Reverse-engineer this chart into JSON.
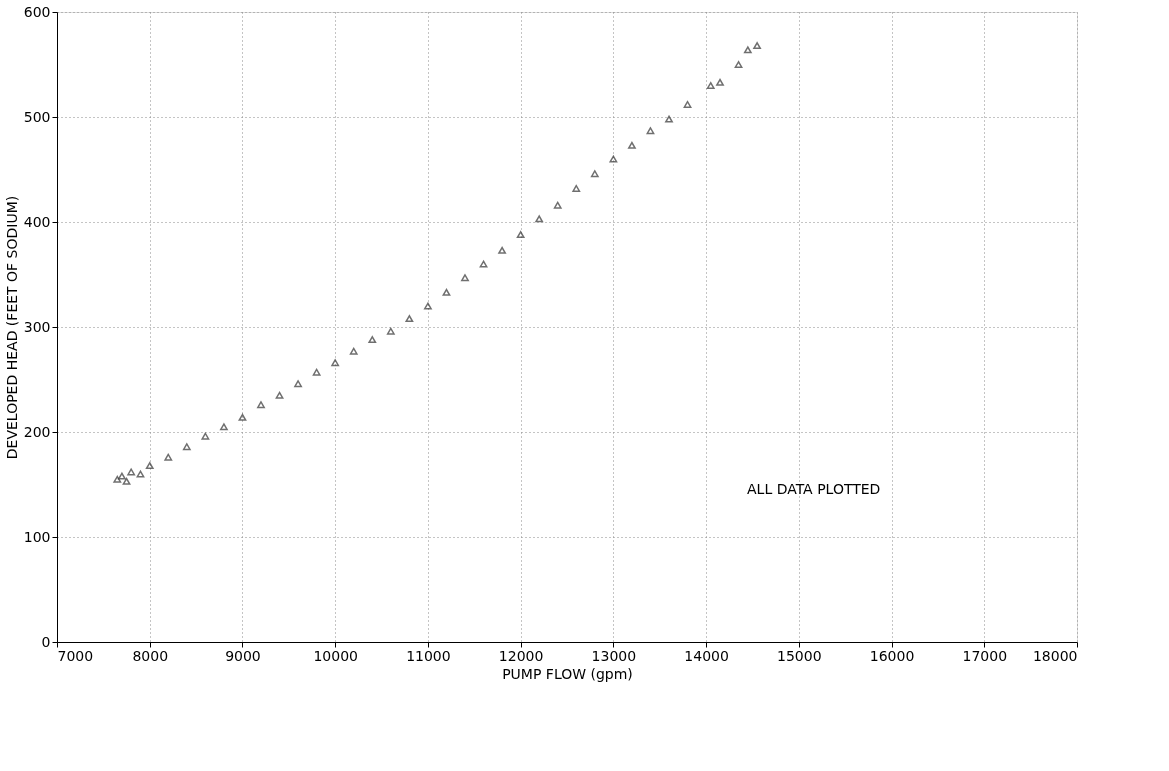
{
  "chart_data": {
    "type": "scatter",
    "xlabel": "PUMP FLOW (gpm)",
    "ylabel": "DEVELOPED HEAD (FEET OF SODIUM)",
    "annotations": [
      "ALL DATA PLOTTED"
    ],
    "xlim": [
      7000,
      18000
    ],
    "ylim": [
      0,
      600
    ],
    "xticks": [
      7000,
      8000,
      9000,
      10000,
      11000,
      12000,
      13000,
      14000,
      15000,
      16000,
      17000,
      18000
    ],
    "yticks": [
      0,
      100,
      200,
      300,
      400,
      500,
      600
    ],
    "grid": true,
    "line_style": "dotted",
    "marker": "triangle",
    "series": [
      {
        "color": "#333333",
        "x": [
          7650,
          7700,
          7750,
          7800,
          7900,
          8000,
          8200,
          8400,
          8600,
          8800,
          9000,
          9200,
          9400,
          9600,
          9800,
          10000,
          10200,
          10400,
          10600,
          10800,
          11000,
          11200,
          11400,
          11600,
          11800,
          12000,
          12200,
          12400,
          12600,
          12800,
          13000,
          13200,
          13400,
          13600,
          13800,
          14050,
          14150,
          14350,
          14450,
          14550
        ],
        "values": [
          155,
          158,
          153,
          162,
          160,
          168,
          176,
          186,
          196,
          205,
          214,
          226,
          235,
          246,
          257,
          266,
          277,
          288,
          296,
          308,
          320,
          333,
          347,
          360,
          373,
          388,
          403,
          416,
          432,
          446,
          460,
          473,
          487,
          498,
          512,
          530,
          533,
          550,
          564,
          568
        ]
      }
    ]
  }
}
